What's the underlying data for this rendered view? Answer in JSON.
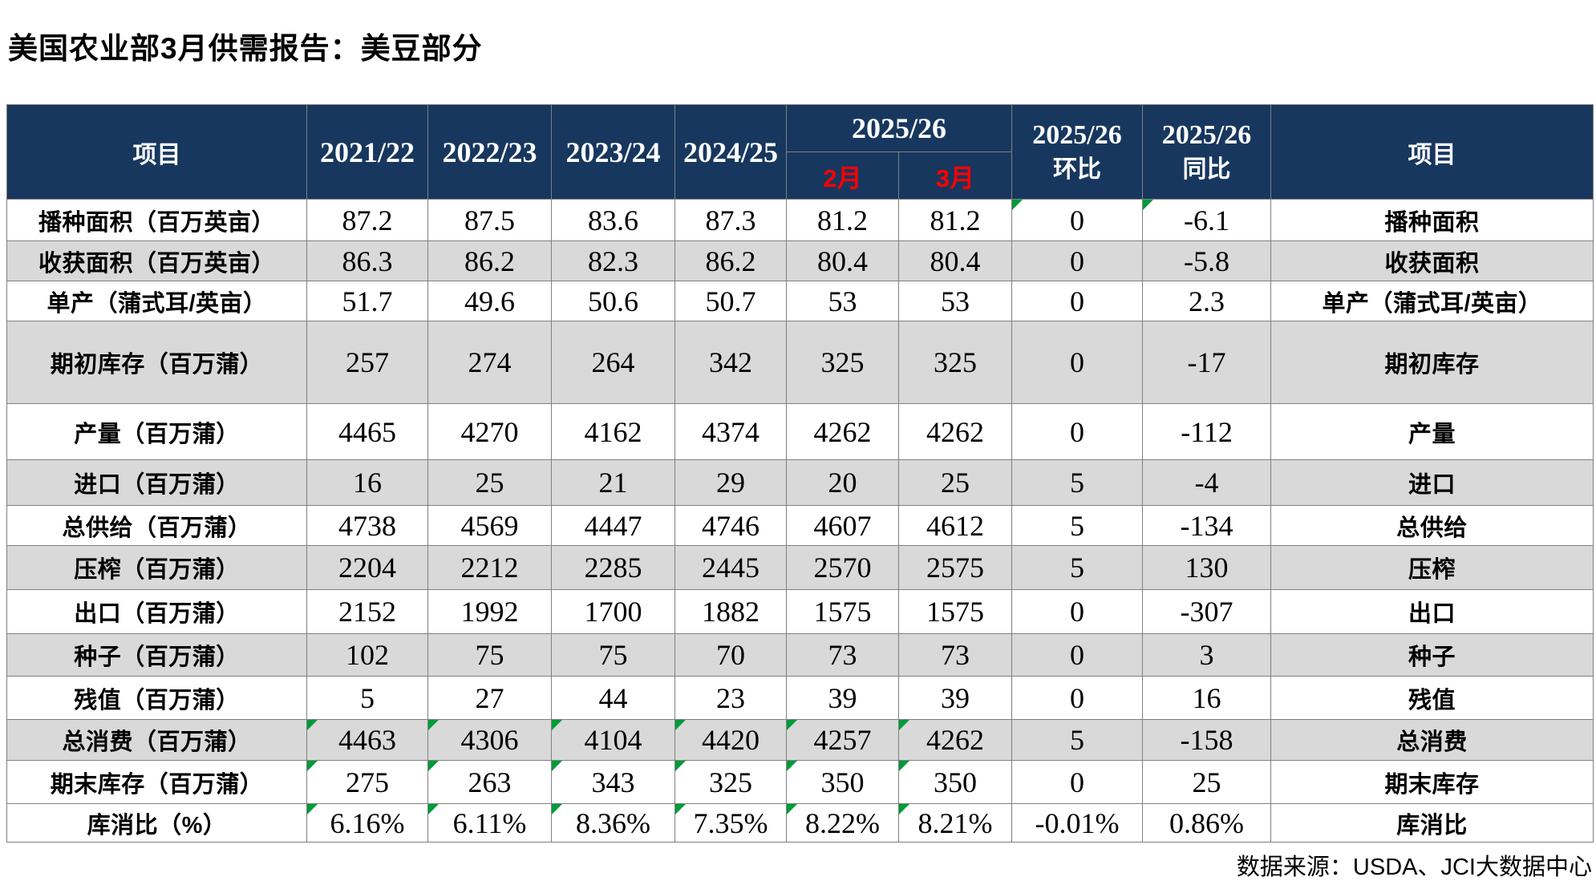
{
  "page": {
    "title": "美国农业部3月供需报告：美豆部分",
    "source_note": "数据来源：USDA、JCI大数据中心"
  },
  "colors": {
    "header_bg": "#17375e",
    "header_text": "#ffffff",
    "month_red": "#ff0000",
    "row_shade": "#d9d9d9",
    "border": "#808080",
    "marker_green": "#009b3a",
    "title_text": "#000000"
  },
  "table": {
    "header": {
      "item_left": "项目",
      "years": [
        "2021/22",
        "2022/23",
        "2023/24",
        "2024/25"
      ],
      "group_label": "2025/26",
      "months": [
        "2月",
        "3月"
      ],
      "mom": {
        "line1": "2025/26",
        "line2": "环比"
      },
      "yoy": {
        "line1": "2025/26",
        "line2": "同比"
      },
      "item_right": "项目"
    },
    "rows": [
      {
        "label": "播种面积（百万英亩）",
        "values": [
          "87.2",
          "87.5",
          "83.6",
          "87.3",
          "81.2",
          "81.2",
          "0",
          "-6.1"
        ],
        "label_right": "播种面积",
        "shaded": false,
        "markers": [
          6,
          7
        ]
      },
      {
        "label": "收获面积（百万英亩）",
        "values": [
          "86.3",
          "86.2",
          "82.3",
          "86.2",
          "80.4",
          "80.4",
          "0",
          "-5.8"
        ],
        "label_right": "收获面积",
        "shaded": true,
        "markers": []
      },
      {
        "label": "单产（蒲式耳/英亩）",
        "values": [
          "51.7",
          "49.6",
          "50.6",
          "50.7",
          "53",
          "53",
          "0",
          "2.3"
        ],
        "label_right": "单产（蒲式耳/英亩）",
        "shaded": false,
        "markers": []
      },
      {
        "label": "期初库存（百万蒲）",
        "values": [
          "257",
          "274",
          "264",
          "342",
          "325",
          "325",
          "0",
          "-17"
        ],
        "label_right": "期初库存",
        "shaded": true,
        "markers": []
      },
      {
        "label": "产量（百万蒲）",
        "values": [
          "4465",
          "4270",
          "4162",
          "4374",
          "4262",
          "4262",
          "0",
          "-112"
        ],
        "label_right": "产量",
        "shaded": false,
        "markers": []
      },
      {
        "label": "进口（百万蒲）",
        "values": [
          "16",
          "25",
          "21",
          "29",
          "20",
          "25",
          "5",
          "-4"
        ],
        "label_right": "进口",
        "shaded": true,
        "markers": []
      },
      {
        "label": "总供给（百万蒲）",
        "values": [
          "4738",
          "4569",
          "4447",
          "4746",
          "4607",
          "4612",
          "5",
          "-134"
        ],
        "label_right": "总供给",
        "shaded": false,
        "markers": []
      },
      {
        "label": "压榨（百万蒲）",
        "values": [
          "2204",
          "2212",
          "2285",
          "2445",
          "2570",
          "2575",
          "5",
          "130"
        ],
        "label_right": "压榨",
        "shaded": true,
        "markers": []
      },
      {
        "label": "出口（百万蒲）",
        "values": [
          "2152",
          "1992",
          "1700",
          "1882",
          "1575",
          "1575",
          "0",
          "-307"
        ],
        "label_right": "出口",
        "shaded": false,
        "markers": []
      },
      {
        "label": "种子（百万蒲）",
        "values": [
          "102",
          "75",
          "75",
          "70",
          "73",
          "73",
          "0",
          "3"
        ],
        "label_right": "种子",
        "shaded": true,
        "markers": []
      },
      {
        "label": "残值（百万蒲）",
        "values": [
          "5",
          "27",
          "44",
          "23",
          "39",
          "39",
          "0",
          "16"
        ],
        "label_right": "残值",
        "shaded": false,
        "markers": []
      },
      {
        "label": "总消费（百万蒲）",
        "values": [
          "4463",
          "4306",
          "4104",
          "4420",
          "4257",
          "4262",
          "5",
          "-158"
        ],
        "label_right": "总消费",
        "shaded": true,
        "markers": [
          0,
          1,
          2,
          3,
          4,
          5
        ]
      },
      {
        "label": "期末库存（百万蒲）",
        "values": [
          "275",
          "263",
          "343",
          "325",
          "350",
          "350",
          "0",
          "25"
        ],
        "label_right": "期末库存",
        "shaded": false,
        "markers": [
          0,
          1,
          2,
          3,
          4,
          5
        ]
      },
      {
        "label": "库消比（%）",
        "values": [
          "6.16%",
          "6.11%",
          "8.36%",
          "7.35%",
          "8.22%",
          "8.21%",
          "-0.01%",
          "0.86%"
        ],
        "label_right": "库消比",
        "shaded": false,
        "markers": [
          0,
          1,
          2,
          3,
          4,
          5
        ]
      }
    ]
  }
}
